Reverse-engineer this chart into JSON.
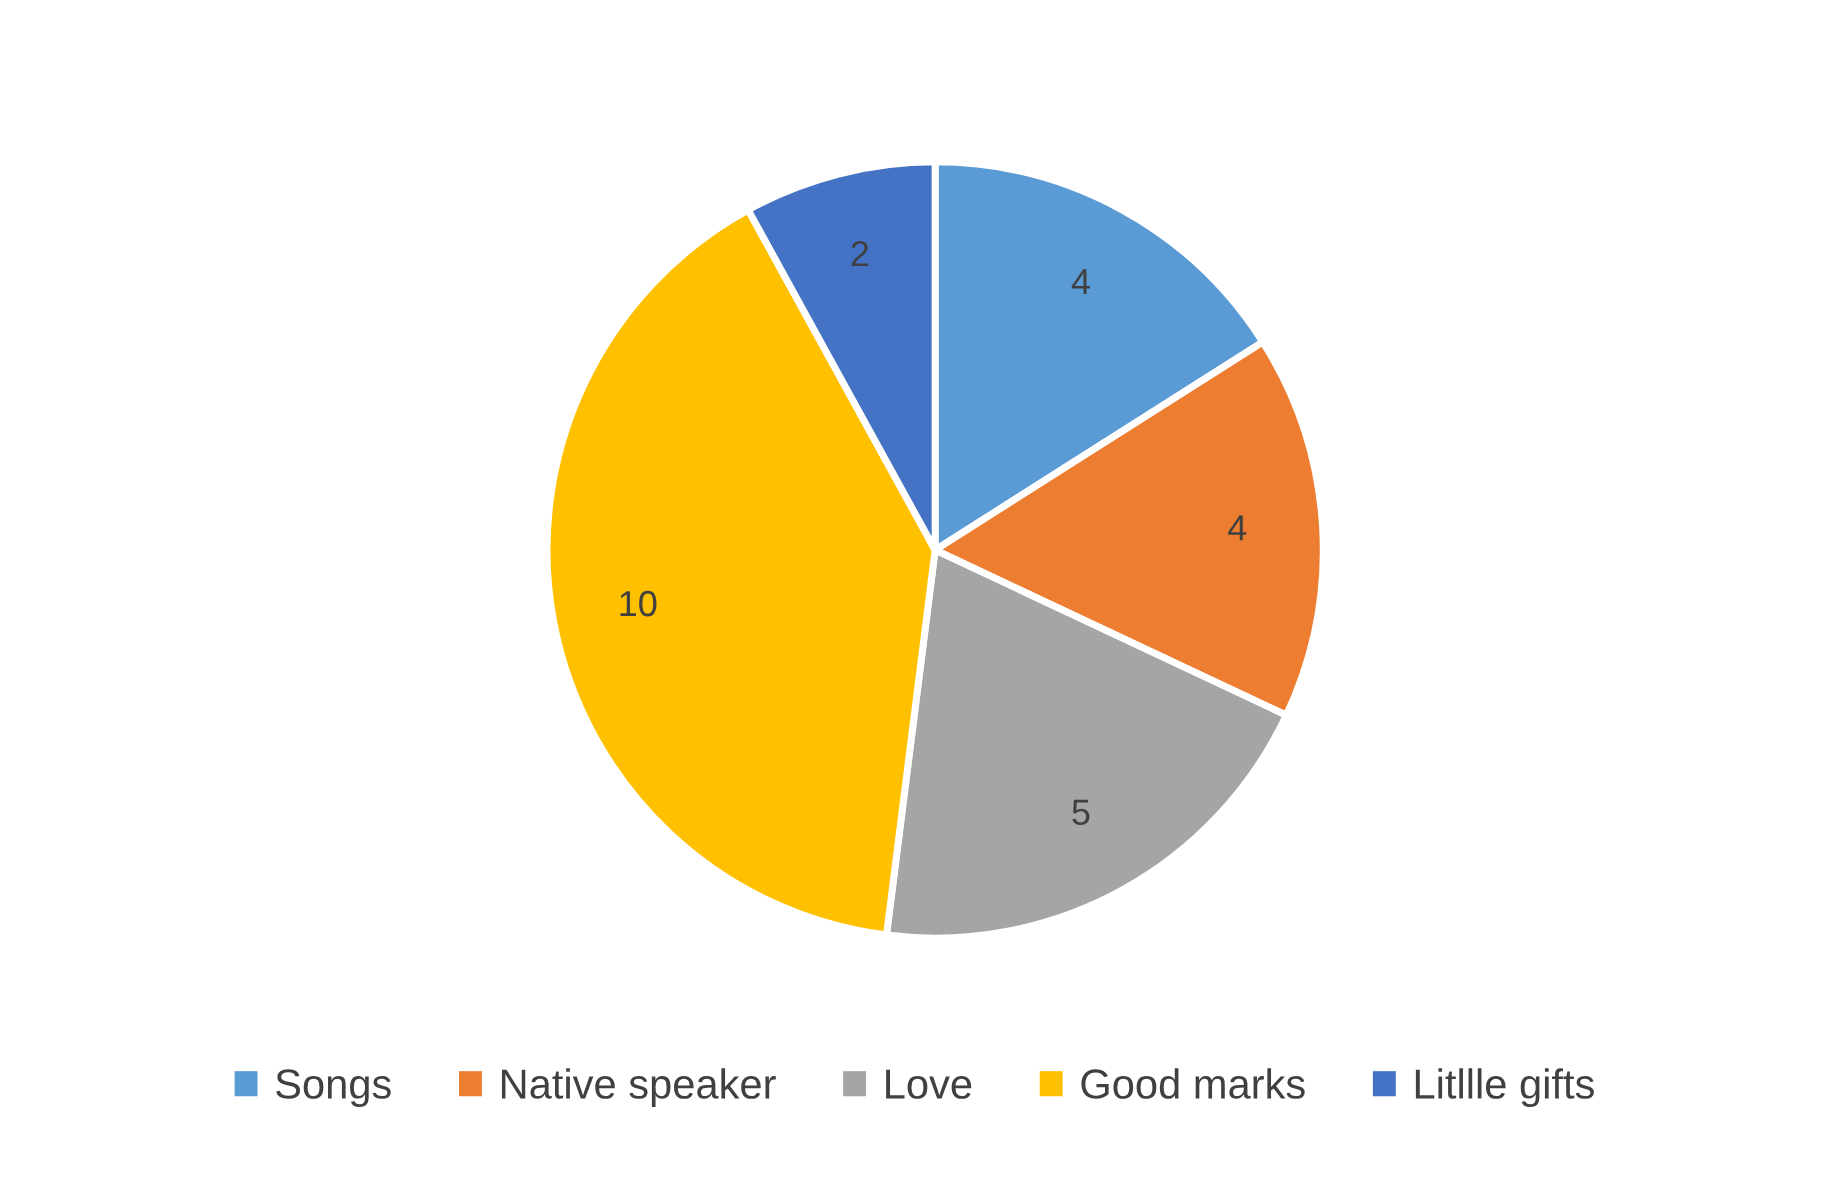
{
  "chart_data": {
    "type": "pie",
    "categories": [
      "Songs",
      "Native speaker",
      "Love",
      "Good marks",
      "Litllle gifts"
    ],
    "values": [
      4,
      4,
      5,
      10,
      2
    ],
    "colors": [
      "#5b9bd5",
      "#ed7d31",
      "#a5a5a5",
      "#ffc000",
      "#4472c4"
    ],
    "data_labels": true,
    "legend": "bottom"
  }
}
